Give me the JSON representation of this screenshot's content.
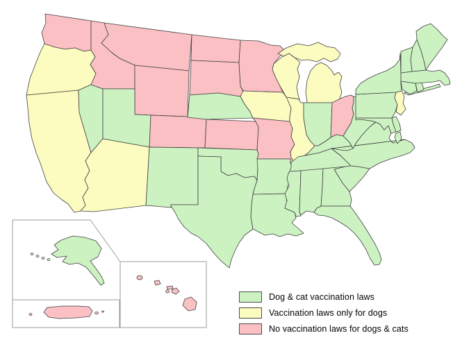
{
  "legend": {
    "items": [
      {
        "key": "dogs_cats",
        "label": "Dog & cat vaccination laws",
        "color": "#ccf2c2"
      },
      {
        "key": "dogs_only",
        "label": "Vaccination laws only for dogs",
        "color": "#fcfcc0"
      },
      {
        "key": "none",
        "label": "No vaccination laws for dogs & cats",
        "color": "#fbc0c4"
      }
    ]
  },
  "map": {
    "background": "#ffffff",
    "border_color": "#3f3f3f",
    "inset_border_color": "#9b9b9b",
    "states": [
      {
        "id": "WA",
        "name": "Washington",
        "category": "none",
        "polys": [
          "65,20 131,30 131,72 121,74 108,69 94,71 79,68 64,63 60,47 66,33"
        ]
      },
      {
        "id": "OR",
        "name": "Oregon",
        "category": "dogs_only",
        "polys": [
          "64,63 79,68 94,71 108,69 121,74 131,72 137,82 130,93 138,106 131,122 113,130 38,137 43,113 52,90 58,75"
        ]
      },
      {
        "id": "CA",
        "name": "California",
        "category": "dogs_only",
        "polys": [
          "38,137 113,130 114,162 131,220 123,232 129,246 122,259 127,271 119,284 123,296 116,304 107,306 98,294 88,287 77,278 67,262 59,238 52,220 46,200 42,178 40,155"
        ]
      },
      {
        "id": "NV",
        "name": "Nevada",
        "category": "dogs_cats",
        "polys": [
          "113,130 131,122 148,128 148,200 131,220 114,162"
        ]
      },
      {
        "id": "ID",
        "name": "Idaho",
        "category": "none",
        "polys": [
          "131,30 150,33 156,50 146,62 160,75 172,84 194,94 194,128 148,128 131,122 138,106 130,93 137,82 131,72"
        ]
      },
      {
        "id": "MT",
        "name": "Montana",
        "category": "none",
        "polys": [
          "150,33 276,50 272,102 194,94 172,84 160,75 146,62 156,50"
        ]
      },
      {
        "id": "WY",
        "name": "Wyoming",
        "category": "none",
        "polys": [
          "194,94 272,102 270,168 194,165"
        ]
      },
      {
        "id": "UT",
        "name": "Utah",
        "category": "dogs_cats",
        "polys": [
          "148,128 194,128 194,165 217,166 215,212 148,200"
        ]
      },
      {
        "id": "CO",
        "name": "Colorado",
        "category": "none",
        "polys": [
          "217,166 270,168 297,170 295,213 215,212"
        ]
      },
      {
        "id": "AZ",
        "name": "Arizona",
        "category": "dogs_only",
        "polys": [
          "148,200 215,212 210,296 160,302 135,305 116,304 123,296 119,284 127,271 122,259 129,246 123,232 131,220"
        ]
      },
      {
        "id": "NM",
        "name": "New Mexico",
        "category": "dogs_cats",
        "polys": [
          "215,212 285,213 285,295 246,295 246,299 210,296"
        ]
      },
      {
        "id": "ND",
        "name": "North Dakota",
        "category": "none",
        "polys": [
          "276,50 346,58 344,90 275,87"
        ]
      },
      {
        "id": "SD",
        "name": "South Dakota",
        "category": "none",
        "polys": [
          "275,87 344,90 346,124 350,132 346,139 314,134 273,137"
        ]
      },
      {
        "id": "NE",
        "name": "Nebraska",
        "category": "dogs_cats",
        "polys": [
          "273,137 314,134 346,139 352,150 360,161 364,170 297,172 270,169"
        ]
      },
      {
        "id": "KS",
        "name": "Kansas",
        "category": "none",
        "polys": [
          "297,172 368,175 372,183 370,216 295,213"
        ]
      },
      {
        "id": "OK",
        "name": "Oklahoma",
        "category": "dogs_cats",
        "polys": [
          "285,213 370,216 372,222 370,260 366,254 352,256 340,250 328,253 318,247 318,226 285,225"
        ]
      },
      {
        "id": "TX",
        "name": "Texas",
        "category": "dogs_cats",
        "polys": [
          "285,225 318,226 318,247 328,253 340,250 352,256 366,254 370,260 366,272 364,280 362,295 361,312 364,330 352,339 344,350 338,362 333,374 330,386 318,376 308,365 297,351 285,341 275,336 265,327 257,316 252,306 246,297 246,295 285,295"
        ]
      },
      {
        "id": "MN",
        "name": "Minnesota",
        "category": "none",
        "polys": [
          "346,58 372,59 390,65 403,66 411,74 402,82 394,92 392,100 397,112 403,124 407,133 350,131 346,124 344,90"
        ]
      },
      {
        "id": "IA",
        "name": "Iowa",
        "category": "dogs_only",
        "polys": [
          "350,131 407,133 413,141 419,156 417,168 417,175 364,170 360,161 352,150 346,139"
        ]
      },
      {
        "id": "MO",
        "name": "Missouri",
        "category": "none",
        "polys": [
          "364,170 417,175 421,185 419,197 424,208 418,219 419,227 425,228 425,235 418,235 418,229 370,229 372,222 370,216 372,183 368,175"
        ]
      },
      {
        "id": "AR",
        "name": "Arkansas",
        "category": "dogs_cats",
        "polys": [
          "370,229 418,229 418,235 421,241 415,250 418,260 413,270 416,279 364,280 366,272 370,260 371,244"
        ]
      },
      {
        "id": "LA",
        "name": "Louisiana",
        "category": "dogs_cats",
        "polys": [
          "364,280 416,279 412,288 415,295 410,300 424,306 426,314 420,321 428,328 437,336 426,340 414,337 403,341 393,337 381,339 372,334 364,330 361,312 362,295"
        ]
      },
      {
        "id": "WI",
        "name": "Wisconsin",
        "category": "dogs_only",
        "polys": [
          "394,92 406,82 416,77 424,83 432,90 428,99 431,111 427,125 429,137 431,143 412,140 403,124 397,112 392,100"
        ]
      },
      {
        "id": "MI",
        "name": "Michigan",
        "category": "dogs_only",
        "polys": [
          "400,77 412,69 428,63 444,66 458,61 470,67 482,69 490,77 486,85 476,89 466,84 456,89 444,86 434,87 424,83 416,77 408,81",
          "442,148 440,132 442,116 447,102 454,94 462,90 470,94 477,101 481,108 487,104 492,110 489,122 492,133 488,145 480,148"
        ]
      },
      {
        "id": "IL",
        "name": "Illinois",
        "category": "dogs_only",
        "polys": [
          "412,140 430,143 433,148 437,148 437,170 441,194 447,204 453,210 444,220 432,229 425,235 419,227 418,219 424,208 419,197 421,185 417,175 417,168 419,156 414,144"
        ]
      },
      {
        "id": "IN",
        "name": "Indiana",
        "category": "dogs_cats",
        "polys": [
          "437,148 478,148 476,198 468,204 458,210 453,210 447,204 441,194 437,170"
        ]
      },
      {
        "id": "OH",
        "name": "Ohio",
        "category": "none",
        "polys": [
          "478,148 488,143 497,139 505,137 509,139 509,148 507,156 509,164 505,178 499,187 494,196 484,194 476,198"
        ]
      },
      {
        "id": "KY",
        "name": "Kentucky",
        "category": "dogs_cats",
        "polys": [
          "425,235 432,229 444,220 453,210 458,210 468,204 476,198 484,194 494,196 503,205 508,214 500,217 490,216 477,214 460,220 445,223 429,226 426,230"
        ]
      },
      {
        "id": "TN",
        "name": "Tennessee",
        "category": "dogs_cats",
        "polys": [
          "419,234 429,226 445,223 460,220 477,214 490,224 498,232 505,239 461,245 433,246 417,247 419,241"
        ]
      },
      {
        "id": "MS",
        "name": "Mississippi",
        "category": "dogs_cats",
        "polys": [
          "417,247 433,246 431,305 433,311 426,312 424,306 410,300 413,289 410,279 416,268 413,257 415,250"
        ]
      },
      {
        "id": "AL",
        "name": "Alabama",
        "category": "dogs_cats",
        "polys": [
          "433,246 465,243 464,269 462,297 456,300 452,306 441,304 433,310 431,305"
        ]
      },
      {
        "id": "GA",
        "name": "Georgia",
        "category": "dogs_cats",
        "polys": [
          "465,243 497,240 481,244 487,254 494,265 503,276 506,288 504,297 462,297 464,269"
        ]
      },
      {
        "id": "FL",
        "name": "Florida",
        "category": "dogs_cats",
        "polys": [
          "462,297 504,297 510,305 517,315 525,327 533,340 540,352 546,364 549,374 546,381 539,382 533,373 527,360 519,347 510,336 500,327 489,320 478,314 468,311 458,310 452,306 456,300"
        ]
      },
      {
        "id": "SC",
        "name": "South Carolina",
        "category": "dogs_cats",
        "polys": [
          "497,240 505,239 515,240 532,243 523,255 512,267 503,276 494,265 487,254 481,244"
        ]
      },
      {
        "id": "NC",
        "name": "North Carolina",
        "category": "dogs_cats",
        "polys": [
          "477,214 583,201 593,206 597,213 590,220 579,224 562,229 546,235 532,243 515,240 505,239 498,232 490,224"
        ]
      },
      {
        "id": "VA",
        "name": "Virginia",
        "category": "dogs_cats",
        "polys": [
          "541,176 547,179 553,187 559,181 563,192 560,199 565,206 572,204 583,201 477,214 490,216 500,217 508,214 513,205 520,196 527,188 534,181",
          "570,192 576,190 578,200 572,207 568,198"
        ]
      },
      {
        "id": "WV",
        "name": "West Virginia",
        "category": "dogs_cats",
        "polys": [
          "509,139 513,140 512,170 518,172 526,173 534,174 541,176 534,181 527,188 520,196 513,205 508,214 503,205 494,196 499,187 505,178 509,164 507,156 509,148"
        ]
      },
      {
        "id": "MD",
        "name": "Maryland",
        "category": "dogs_cats",
        "polys": [
          "512,170 564,170 566,179 570,190 563,192 559,181 553,187 547,179 541,176 534,174 526,173 518,172 512,173"
        ]
      },
      {
        "id": "DE",
        "name": "Delaware",
        "category": "dogs_cats",
        "polys": [
          "564,170 570,168 575,178 577,188 570,190 566,179"
        ]
      },
      {
        "id": "PA",
        "name": "Pennsylvania",
        "category": "dogs_cats",
        "polys": [
          "512,136 570,133 568,141 572,151 569,161 564,170 512,170"
        ]
      },
      {
        "id": "NJ",
        "name": "New Jersey",
        "category": "dogs_only",
        "polys": [
          "570,133 578,131 582,139 580,149 584,157 577,166 570,161 572,151 568,141"
        ]
      },
      {
        "id": "NY",
        "name": "New York",
        "category": "dogs_cats",
        "polys": [
          "512,129 519,120 530,113 543,107 556,102 568,95 575,86 576,77 577,108 577,122 578,131 570,133 512,136",
          "581,134 596,131 612,127 627,123 632,121 634,125 620,129 604,133 588,137"
        ]
      },
      {
        "id": "CT",
        "name": "Connecticut",
        "category": "dogs_cats",
        "polys": [
          "577,117 598,120 600,131 590,136 579,129"
        ]
      },
      {
        "id": "RI",
        "name": "Rhode Island",
        "category": "dogs_cats",
        "polys": [
          "598,120 607,119 610,129 601,133"
        ]
      },
      {
        "id": "MA",
        "name": "Massachusetts",
        "category": "dogs_cats",
        "polys": [
          "577,105 593,103 613,101 622,103 633,101 640,105 646,113 648,121 640,123 633,116 624,118 612,119 598,120 577,117"
        ]
      },
      {
        "id": "VT",
        "name": "Vermont",
        "category": "dogs_cats",
        "polys": [
          "577,74 594,68 591,85 593,103 577,105 577,90"
        ]
      },
      {
        "id": "NH",
        "name": "New Hampshire",
        "category": "dogs_cats",
        "polys": [
          "594,68 600,57 606,73 610,87 613,101 593,103 591,85"
        ]
      },
      {
        "id": "ME",
        "name": "Maine",
        "category": "dogs_cats",
        "polys": [
          "600,57 599,45 609,38 620,34 629,42 637,51 644,57 636,69 627,81 618,93 613,101 610,87 606,73"
        ]
      },
      {
        "id": "AK",
        "name": "Alaska",
        "category": "dogs_cats",
        "polys": [
          "88,346 105,340 122,342 138,347 146,358 141,370 130,376 139,388 147,400 150,408 145,411 135,398 124,385 112,379 100,381 90,377 96,369 82,371 74,366 84,360 78,353"
        ],
        "dots": [
          [
            46,
            366,
            2,
            1.5
          ],
          [
            54,
            369,
            2,
            1.5
          ],
          [
            62,
            372,
            2,
            1.5
          ],
          [
            70,
            374,
            2,
            1.5
          ]
        ]
      },
      {
        "id": "HI",
        "name": "Hawaii",
        "category": "none",
        "polys": [
          "222,405 229,404 231,409 224,411",
          "240,413 248,412 249,416 241,417",
          "248,417 254,415 258,420 253,424 247,421",
          "266,431 275,428 283,435 281,446 271,448 263,440"
        ],
        "dots": [
          [
            201,
            400,
            4,
            3
          ],
          [
            241,
            420,
            2.5,
            2
          ]
        ]
      },
      {
        "id": "PR",
        "name": "Puerto Rico",
        "category": "none",
        "polys": [
          "68,443 90,441 112,441 128,442 133,448 129,456 110,458 85,459 70,457 63,450"
        ],
        "dots": [
          [
            44,
            453,
            2,
            1.5
          ],
          [
            139,
            451,
            2.5,
            1.5
          ],
          [
            148,
            449,
            1.5,
            1
          ]
        ]
      }
    ],
    "insets": {
      "alaska_box": "18,317 130,317 173,377 173,432 18,432",
      "hawaii_box": "173,377 297,377 297,472 173,472",
      "puerto_rico_box": "18,432 172,432 172,472 18,472"
    }
  }
}
